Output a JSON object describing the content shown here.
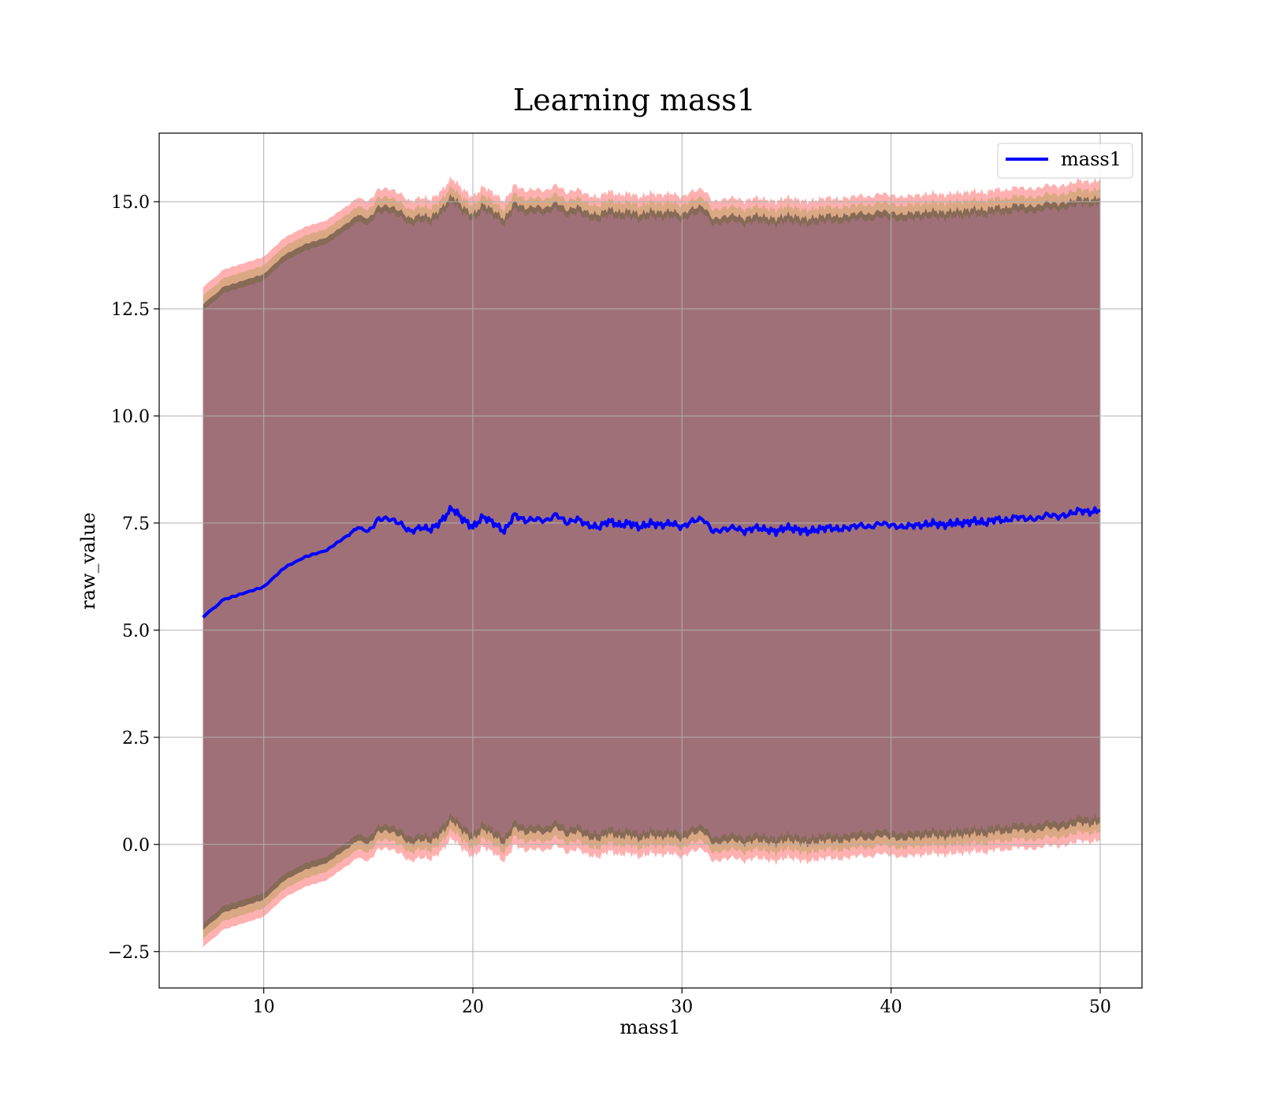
{
  "chart_data": {
    "type": "area",
    "title": "Learning mass1",
    "xlabel": "mass1",
    "ylabel": "raw_value",
    "xlim": [
      5,
      52
    ],
    "ylim": [
      -3.35,
      16.6
    ],
    "x_ticks": [
      10,
      20,
      30,
      40,
      50
    ],
    "x_tick_labels": [
      "10",
      "20",
      "30",
      "40",
      "50"
    ],
    "y_ticks": [
      -2.5,
      0.0,
      2.5,
      5.0,
      7.5,
      10.0,
      12.5,
      15.0
    ],
    "y_tick_labels": [
      "−2.5",
      "0.0",
      "2.5",
      "5.0",
      "7.5",
      "10.0",
      "12.5",
      "15.0"
    ],
    "grid": true,
    "legend": {
      "position": "top-right",
      "entries": [
        "mass1"
      ]
    },
    "x": [
      7.1,
      8.0,
      9.0,
      10.0,
      11.0,
      12.0,
      13.0,
      14.0,
      14.5,
      15.0,
      15.5,
      16.0,
      16.5,
      17.0,
      17.5,
      18.0,
      18.5,
      19.0,
      19.5,
      20.0,
      20.5,
      21.0,
      21.5,
      22.0,
      22.5,
      23.0,
      23.5,
      24.0,
      24.5,
      25.0,
      25.5,
      26.0,
      26.5,
      27.0,
      27.5,
      28.0,
      28.5,
      29.0,
      29.5,
      30.0,
      30.5,
      31.0,
      31.5,
      32.0,
      32.5,
      33.0,
      33.5,
      34.0,
      34.5,
      35.0,
      35.5,
      36.0,
      36.5,
      37.0,
      37.5,
      38.0,
      38.5,
      39.0,
      39.5,
      40.0,
      40.5,
      41.0,
      41.5,
      42.0,
      42.5,
      43.0,
      43.5,
      44.0,
      44.5,
      45.0,
      45.5,
      46.0,
      46.5,
      47.0,
      47.5,
      48.0,
      48.5,
      49.0,
      49.5,
      50.0
    ],
    "series": [
      {
        "name": "mass1",
        "color": "#0000ff",
        "values": [
          5.3,
          5.7,
          5.85,
          6.0,
          6.45,
          6.7,
          6.85,
          7.2,
          7.4,
          7.3,
          7.6,
          7.6,
          7.5,
          7.3,
          7.4,
          7.35,
          7.55,
          7.85,
          7.6,
          7.4,
          7.65,
          7.5,
          7.3,
          7.7,
          7.55,
          7.6,
          7.55,
          7.7,
          7.5,
          7.6,
          7.45,
          7.4,
          7.55,
          7.45,
          7.5,
          7.4,
          7.5,
          7.45,
          7.5,
          7.4,
          7.55,
          7.6,
          7.3,
          7.35,
          7.4,
          7.3,
          7.4,
          7.35,
          7.3,
          7.4,
          7.35,
          7.3,
          7.35,
          7.4,
          7.35,
          7.4,
          7.45,
          7.4,
          7.5,
          7.45,
          7.4,
          7.45,
          7.45,
          7.5,
          7.45,
          7.5,
          7.5,
          7.55,
          7.5,
          7.6,
          7.55,
          7.65,
          7.6,
          7.6,
          7.7,
          7.65,
          7.7,
          7.8,
          7.75,
          7.8
        ]
      }
    ],
    "bands": [
      {
        "lower_offset": -7.3,
        "upper_offset": 7.3,
        "color": "#1e1e1e",
        "opacity": 0.45
      },
      {
        "lower_offset": -7.5,
        "upper_offset": 7.5,
        "color": "#b5a055",
        "opacity": 0.5
      },
      {
        "lower_offset": -7.7,
        "upper_offset": 7.7,
        "color": "#ff7070",
        "opacity": 0.55
      }
    ],
    "fill_color": "#a07078"
  }
}
